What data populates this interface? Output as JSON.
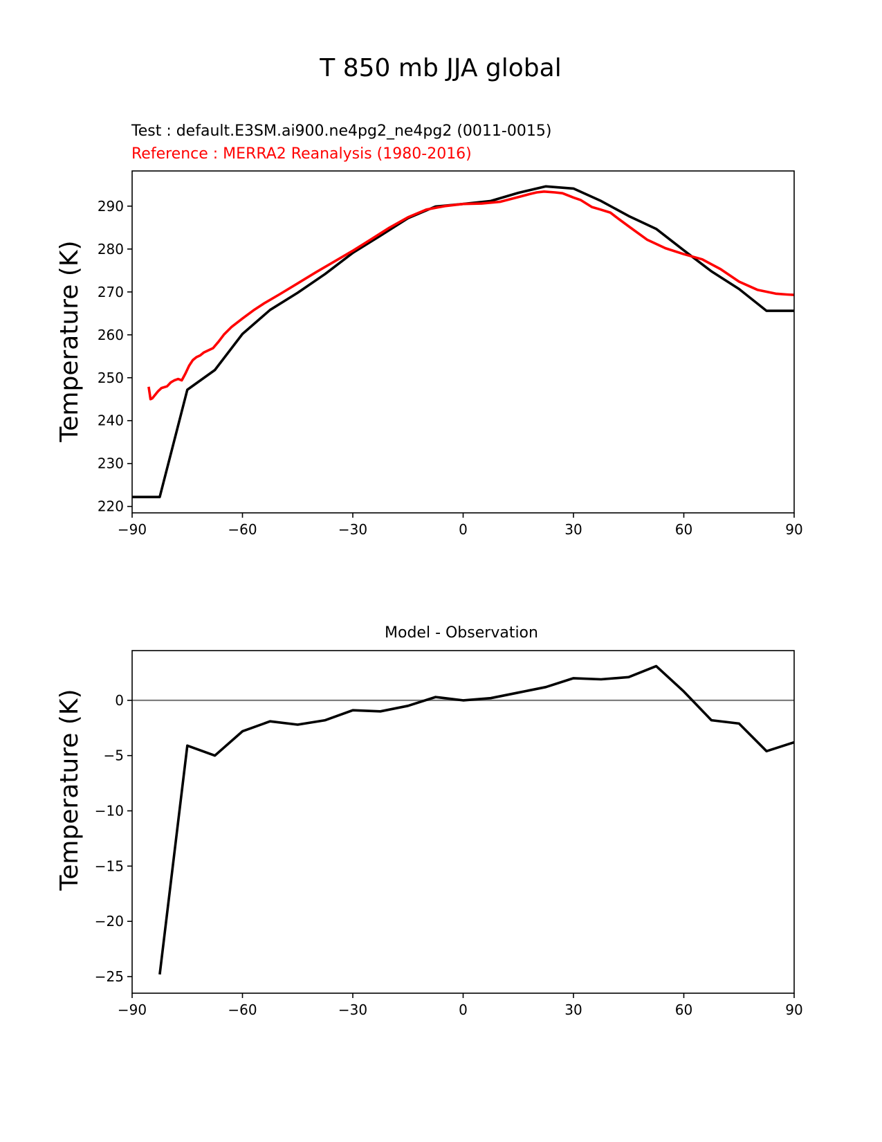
{
  "chart_data": [
    {
      "type": "line",
      "suptitle": "T 850 mb JJA global",
      "test_label": "Test : default.E3SM.ai900.ne4pg2_ne4pg2 (0011-0015)",
      "reference_label": "Reference : MERRA2 Reanalysis (1980-2016)",
      "xlabel": "",
      "ylabel": "Temperature (K)",
      "xlim": [
        -90,
        90
      ],
      "ylim": [
        218.5,
        298.2
      ],
      "xticks": [
        "−90",
        "−60",
        "−30",
        "0",
        "30",
        "60",
        "90"
      ],
      "yticks": [
        "220",
        "230",
        "240",
        "250",
        "260",
        "270",
        "280",
        "290"
      ],
      "series": [
        {
          "name": "Test",
          "color": "#000000",
          "x": [
            -90,
            -82.5,
            -75,
            -67.5,
            -60,
            -52.5,
            -45,
            -37.5,
            -30,
            -22.5,
            -15,
            -7.5,
            0,
            7.5,
            15,
            22.5,
            30,
            37.5,
            45,
            52.5,
            60,
            67.5,
            75,
            82.5,
            90
          ],
          "y": [
            222.2,
            222.2,
            247.2,
            251.8,
            260.2,
            265.8,
            269.8,
            274.2,
            279.1,
            283.1,
            287.2,
            289.9,
            290.5,
            291.2,
            293.1,
            294.6,
            294.1,
            291.2,
            287.7,
            284.7,
            279.7,
            274.8,
            270.7,
            265.6,
            265.6
          ]
        },
        {
          "name": "Reference",
          "color": "#ff0000",
          "x": [
            -85.5,
            -85,
            -84.5,
            -83,
            -82,
            -80.5,
            -79.5,
            -78.5,
            -77.5,
            -76.5,
            -75.5,
            -74.5,
            -73.5,
            -72.5,
            -71.5,
            -70.5,
            -69.5,
            -68,
            -66.5,
            -65,
            -63,
            -60,
            -57,
            -54,
            -50,
            -45,
            -40,
            -35,
            -30,
            -25,
            -20,
            -15,
            -10,
            -5,
            0,
            5,
            10,
            15,
            18,
            20,
            22,
            25,
            27,
            30,
            32,
            35,
            37,
            40,
            42,
            45,
            50,
            55,
            60,
            65,
            70,
            75,
            80,
            85,
            88,
            90
          ],
          "y": [
            247.9,
            245.0,
            245.2,
            246.8,
            247.6,
            248.0,
            248.9,
            249.4,
            249.7,
            249.4,
            251.0,
            252.8,
            254.1,
            254.8,
            255.2,
            255.9,
            256.3,
            256.9,
            258.4,
            260.1,
            261.8,
            263.8,
            265.7,
            267.4,
            269.4,
            272.0,
            274.6,
            277.1,
            279.6,
            282.3,
            285.0,
            287.4,
            289.2,
            290.0,
            290.5,
            290.6,
            291.0,
            292.1,
            292.8,
            293.2,
            293.4,
            293.2,
            293.0,
            292.0,
            291.4,
            289.8,
            289.3,
            288.5,
            287.2,
            285.3,
            282.2,
            280.2,
            278.8,
            277.6,
            275.3,
            272.4,
            270.5,
            269.6,
            269.4,
            269.3
          ]
        }
      ]
    },
    {
      "type": "line",
      "title": "Model - Observation",
      "xlabel": "",
      "ylabel": "Temperature (K)",
      "xlim": [
        -90,
        90
      ],
      "ylim": [
        -26.5,
        4.5
      ],
      "xticks": [
        "−90",
        "−60",
        "−30",
        "0",
        "30",
        "60",
        "90"
      ],
      "yticks": [
        "−25",
        "−20",
        "−15",
        "−10",
        "−5",
        "0"
      ],
      "zero_line_color": "#808080",
      "series": [
        {
          "name": "Model - Observation",
          "color": "#000000",
          "x": [
            -82.5,
            -75,
            -67.5,
            -60,
            -52.5,
            -45,
            -37.5,
            -30,
            -22.5,
            -15,
            -7.5,
            0,
            7.5,
            15,
            22.5,
            30,
            37.5,
            45,
            52.5,
            60,
            67.5,
            75,
            82.5,
            90
          ],
          "y": [
            -24.8,
            -4.1,
            -5.0,
            -2.8,
            -1.9,
            -2.2,
            -1.8,
            -0.9,
            -1.0,
            -0.5,
            0.3,
            0.0,
            0.2,
            0.7,
            1.2,
            2.0,
            1.9,
            2.1,
            3.1,
            0.8,
            -1.8,
            -2.1,
            -4.6,
            -3.8
          ]
        }
      ]
    }
  ]
}
